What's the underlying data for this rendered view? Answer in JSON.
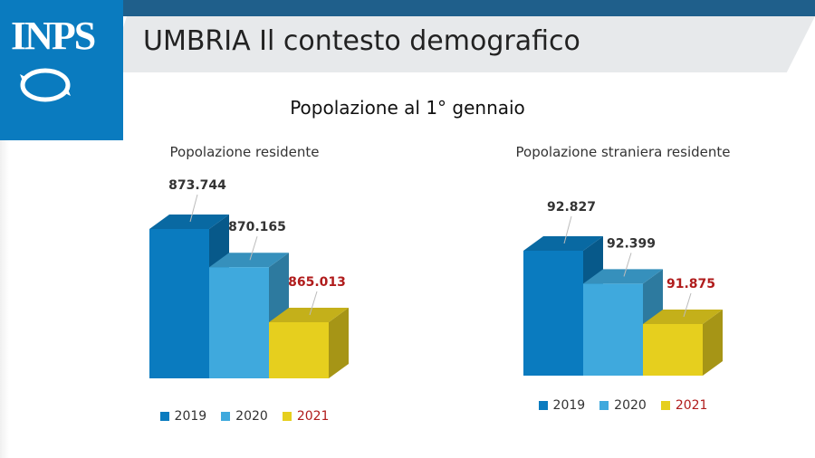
{
  "slide": {
    "logo_text": "INPS",
    "title": "UMBRIA Il contesto demografico",
    "subtitle": "Popolazione al 1° gennaio"
  },
  "colors": {
    "2019": "#0a7bbf",
    "2020": "#3fa9dd",
    "2021": "#e6cf1e",
    "label_default": "#333333",
    "label_2021": "#b01c1c"
  },
  "chart_data": [
    {
      "type": "bar",
      "title": "Popolazione residente",
      "categories": [
        "2019",
        "2020",
        "2021"
      ],
      "values": [
        873744,
        870165,
        865013
      ],
      "value_labels": [
        "873.744",
        "870.165",
        "865.013"
      ],
      "legend": [
        "2019",
        "2020",
        "2021"
      ]
    },
    {
      "type": "bar",
      "title": "Popolazione straniera residente",
      "categories": [
        "2019",
        "2020",
        "2021"
      ],
      "values": [
        92827,
        92399,
        91875
      ],
      "value_labels": [
        "92.827",
        "92.399",
        "91.875"
      ],
      "legend": [
        "2019",
        "2020",
        "2021"
      ]
    }
  ]
}
